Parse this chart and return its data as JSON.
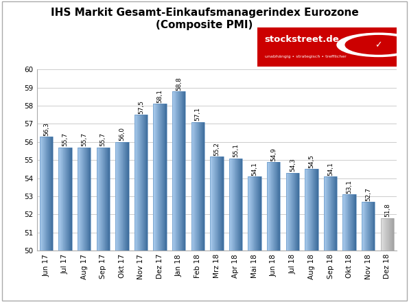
{
  "title_line1": "IHS Markit Gesamt-Einkaufsmanagerindex Eurozone",
  "title_line2": "(Composite PMI)",
  "categories": [
    "Jun 17",
    "Jul 17",
    "Aug 17",
    "Sep 17",
    "Okt 17",
    "Nov 17",
    "Dez 17",
    "Jan 18",
    "Feb 18",
    "Mrz 18",
    "Apr 18",
    "Mai 18",
    "Jun 18",
    "Jul 18",
    "Aug 18",
    "Sep 18",
    "Okt 18",
    "Nov 18",
    "Dez 18"
  ],
  "values": [
    56.3,
    55.7,
    55.7,
    55.7,
    56.0,
    57.5,
    58.1,
    58.8,
    57.1,
    55.2,
    55.1,
    54.1,
    54.9,
    54.3,
    54.5,
    54.1,
    53.1,
    52.7,
    51.8
  ],
  "ylim": [
    50,
    60
  ],
  "yticks": [
    50,
    51,
    52,
    53,
    54,
    55,
    56,
    57,
    58,
    59,
    60
  ],
  "bar_color_blue": "#7aadcf",
  "bar_color_blue_dark": "#4878a0",
  "bar_color_gray": "#c8c8c8",
  "bar_color_gray_dark": "#999999",
  "background_color": "#ffffff",
  "plot_bg_color": "#f0f0f0",
  "grid_color": "#cccccc",
  "title_fontsize": 11,
  "tick_fontsize": 7.5,
  "label_fontsize": 6.5,
  "logo_text": "stockstreet.de",
  "logo_subtext": "unabhängig • strategisch • trefflicher",
  "logo_color": "#cc0000"
}
